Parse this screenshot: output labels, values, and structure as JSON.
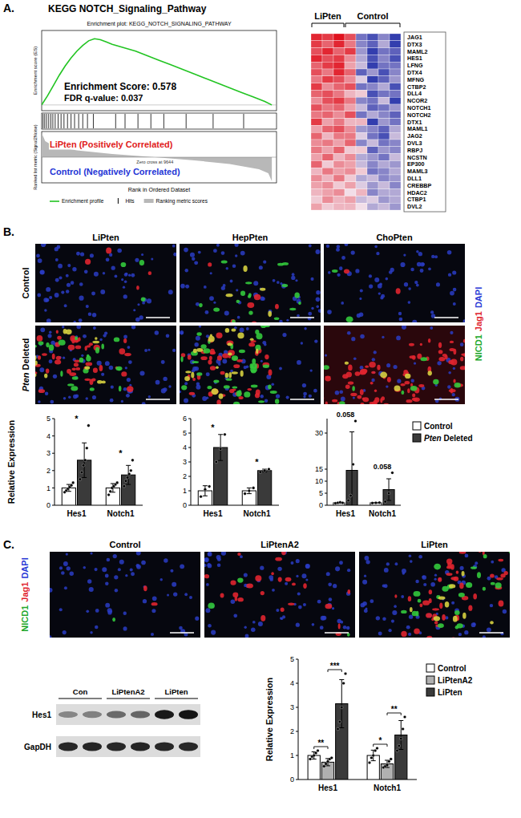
{
  "chart_data": [
    {
      "type": "line",
      "title": "Enrichment plot: KEGG_NOTCH_SIGNALING_PATHWAY",
      "x_label": "Rank in Ordered Dataset",
      "y_label": "Enrichment score (ES)",
      "x": [
        0,
        500,
        1000,
        1500,
        2000,
        2500,
        3000,
        3500,
        4000,
        4500,
        5000,
        5500,
        6000,
        7000,
        8000,
        9000,
        10000,
        11000,
        12000,
        13000,
        14000,
        15000,
        16000,
        17000,
        18000,
        19000,
        19600
      ],
      "series": [
        {
          "name": "Enrichment profile",
          "color": "#22c422",
          "values": [
            0,
            0.08,
            0.17,
            0.26,
            0.34,
            0.41,
            0.47,
            0.52,
            0.56,
            0.578,
            0.57,
            0.55,
            0.53,
            0.5,
            0.47,
            0.43,
            0.39,
            0.35,
            0.31,
            0.27,
            0.23,
            0.19,
            0.15,
            0.11,
            0.07,
            0.03,
            0
          ]
        }
      ],
      "xlim": [
        0,
        20000
      ],
      "ylim": [
        -0.05,
        0.65
      ],
      "tick_labels": false,
      "legend": "bottom",
      "hits": {
        "name": "Hits",
        "color": "#000000",
        "x": [
          120,
          260,
          420,
          600,
          780,
          950,
          1150,
          1400,
          1650,
          1900,
          2200,
          2500,
          2800,
          3150,
          3500,
          3900,
          4400,
          6300,
          7100,
          8200,
          9300,
          10400,
          12300,
          14600,
          17200
        ]
      },
      "ranking_metric": {
        "name": "Ranking metric scores",
        "y_label": "Ranked list metric (Signal2Noise)",
        "color": "#b8b8b8",
        "x": [
          0,
          300,
          1000,
          3000,
          6000,
          9644,
          13000,
          16000,
          18500,
          19300,
          19600
        ],
        "values": [
          1.5,
          1.0,
          0.7,
          0.42,
          0.2,
          0,
          -0.2,
          -0.42,
          -0.75,
          -1.0,
          -1.5
        ],
        "ylim": [
          -1.6,
          1.6
        ],
        "zero_cross_label": "Zero cross at 9644"
      },
      "annotations": [
        {
          "text": "Enrichment Score: 0.578"
        },
        {
          "text": "FDR q-value: 0.037"
        },
        {
          "text": "LiPten (Positively Correlated)",
          "color": "#e01b1b"
        },
        {
          "text": "Control (Negatively Correlated)",
          "color": "#2436d6"
        }
      ]
    },
    {
      "type": "heatmap",
      "column_groups": [
        "LiPten",
        "LiPten",
        "LiPten",
        "Control",
        "Control",
        "Control",
        "Control",
        "Control"
      ],
      "rows": [
        "JAG1",
        "DTX3",
        "MAML2",
        "HES1",
        "LFNG",
        "DTX4",
        "MFNG",
        "CTBP2",
        "DLL4",
        "NCOR2",
        "NOTCH1",
        "NOTCH2",
        "DTX1",
        "MAML1",
        "JAG2",
        "DVL3",
        "RBPJ",
        "NCSTN",
        "EP300",
        "MAML3",
        "DLL1",
        "CREBBP",
        "HDAC2",
        "CTBP1",
        "DVL2"
      ],
      "cells": [
        [
          0.9,
          0.8,
          1,
          0.7,
          -0.6,
          -0.8,
          -0.5,
          -0.9
        ],
        [
          0.8,
          0.6,
          0.9,
          0.5,
          -0.5,
          -0.7,
          -0.3,
          -0.9
        ],
        [
          0.7,
          0.9,
          0.6,
          0.8,
          -0.4,
          -0.9,
          -0.6,
          -0.7
        ],
        [
          0.9,
          0.7,
          0.8,
          0.4,
          -0.3,
          -0.8,
          -0.5,
          -0.8
        ],
        [
          0.6,
          0.8,
          0.9,
          0.3,
          -0.2,
          -0.9,
          -0.6,
          -0.6
        ],
        [
          0.7,
          0.5,
          0.9,
          0.6,
          -0.7,
          -0.4,
          -0.8,
          -0.5
        ],
        [
          0.5,
          0.8,
          0.7,
          0.4,
          -0.1,
          -0.9,
          -0.7,
          -0.4
        ],
        [
          0.8,
          0.4,
          0.6,
          0.7,
          -0.6,
          -0.5,
          -0.3,
          -0.8
        ],
        [
          0.6,
          0.7,
          0.5,
          0.2,
          0.1,
          -0.8,
          -0.6,
          -0.6
        ],
        [
          0.4,
          0.7,
          0.8,
          0.5,
          -0.5,
          -0.6,
          -0.2,
          -0.9
        ],
        [
          0.7,
          0.5,
          0.6,
          0.3,
          -0.2,
          -0.7,
          -0.6,
          -0.4
        ],
        [
          0.5,
          0.6,
          0.4,
          0.7,
          -0.6,
          -0.3,
          -0.5,
          -0.7
        ],
        [
          0.8,
          0.3,
          0.5,
          0.2,
          0.2,
          -0.9,
          -0.4,
          -0.6
        ],
        [
          0.3,
          0.6,
          0.7,
          0.4,
          -0.4,
          -0.5,
          -0.7,
          -0.3
        ],
        [
          0.6,
          0.2,
          0.5,
          0.5,
          -0.1,
          -0.6,
          -0.8,
          -0.2
        ],
        [
          0.4,
          0.5,
          0.3,
          0.6,
          -0.5,
          -0.2,
          -0.6,
          -0.5
        ],
        [
          0.5,
          0.3,
          0.6,
          0.1,
          0.1,
          -0.7,
          -0.4,
          -0.5
        ],
        [
          0.3,
          0.6,
          0.2,
          0.4,
          -0.3,
          -0.4,
          -0.6,
          -0.2
        ],
        [
          0.6,
          0.1,
          0.4,
          0.3,
          -0.2,
          -0.5,
          -0.3,
          -0.4
        ],
        [
          0.2,
          0.5,
          0.3,
          0.4,
          0.1,
          -0.6,
          -0.5,
          -0.3
        ],
        [
          0.4,
          0.2,
          0.5,
          0.1,
          -0.3,
          -0.2,
          -0.5,
          -0.4
        ],
        [
          0.3,
          0.4,
          0.1,
          0.3,
          -0.1,
          -0.4,
          -0.2,
          -0.5
        ],
        [
          0.2,
          0.3,
          0.4,
          0.0,
          0.2,
          -0.5,
          -0.3,
          -0.3
        ],
        [
          0.1,
          0.4,
          0.2,
          0.3,
          -0.2,
          -0.1,
          -0.4,
          -0.3
        ],
        [
          0.3,
          0.1,
          0.2,
          0.2,
          0.0,
          -0.3,
          -0.2,
          -0.4
        ]
      ],
      "zlim": [
        -1,
        1
      ]
    },
    {
      "type": "bar",
      "y_label": "Relative Expression",
      "categories": [
        "Hes1",
        "Notch1"
      ],
      "legend": "right",
      "series": [
        {
          "name": "Control",
          "color": "#ffffff"
        },
        {
          "name": "Pten Deleted",
          "color": "#3a3a3a"
        }
      ],
      "facets": [
        {
          "ylim": [
            0,
            5
          ],
          "yticks": [
            0,
            1,
            2,
            3,
            4,
            5
          ],
          "series": [
            {
              "values": [
                1.0,
                1.0
              ],
              "errors": [
                0.2,
                0.25
              ],
              "points": [
                [
                  0.75,
                  0.85,
                  0.95,
                  1.05,
                  1.15,
                  1.3
                ],
                [
                  0.6,
                  0.8,
                  1.0,
                  1.1,
                  1.2,
                  1.3
                ]
              ]
            },
            {
              "values": [
                2.6,
                1.75
              ],
              "errors": [
                1.0,
                0.55
              ],
              "points": [
                [
                  1.5,
                  1.9,
                  2.3,
                  2.6,
                  3.3,
                  4.6
                ],
                [
                  1.1,
                  1.4,
                  1.6,
                  1.8,
                  2.0,
                  2.6
                ]
              ],
              "significance": [
                "*",
                "*"
              ]
            }
          ]
        },
        {
          "ylim": [
            0,
            6
          ],
          "yticks": [
            0,
            1,
            2,
            3,
            4,
            5,
            6
          ],
          "series": [
            {
              "values": [
                1.0,
                1.0
              ],
              "errors": [
                0.35,
                0.2
              ],
              "points": [
                [
                  0.6,
                  1.1,
                  1.3
                ],
                [
                  0.8,
                  1.0,
                  1.2
                ]
              ]
            },
            {
              "values": [
                4.0,
                2.4
              ],
              "errors": [
                0.9,
                0.1
              ],
              "points": [
                [
                  3.0,
                  3.9,
                  4.9
                ],
                [
                  2.3,
                  2.4,
                  2.5
                ]
              ],
              "significance": [
                "*",
                "*"
              ]
            }
          ]
        },
        {
          "ylim": [
            0,
            36
          ],
          "yticks": [
            0,
            5,
            10,
            15,
            30
          ],
          "series": [
            {
              "values": [
                1.0,
                1.0
              ],
              "errors": [
                0.2,
                0.1
              ],
              "points": [
                [
                  0.8,
                  1.0,
                  1.2,
                  1.0
                ],
                [
                  0.9,
                  1.0,
                  1.1
                ]
              ]
            },
            {
              "values": [
                14.5,
                6.5
              ],
              "errors": [
                16.0,
                4.5
              ],
              "points": [
                [
                  2.0,
                  4.0,
                  17.0,
                  35.0
                ],
                [
                  1.5,
                  5.0,
                  13.5
                ]
              ],
              "significance": [
                "0.058",
                "0.058"
              ]
            }
          ]
        }
      ]
    },
    {
      "type": "bar",
      "y_label": "Relative Expression",
      "categories": [
        "Hes1",
        "Notch1"
      ],
      "legend": "right",
      "ylim": [
        0,
        5
      ],
      "yticks": [
        0,
        1,
        2,
        3,
        4,
        5
      ],
      "series": [
        {
          "name": "Control",
          "color": "#ffffff",
          "values": [
            1.0,
            1.0
          ],
          "errors": [
            0.15,
            0.22
          ],
          "points": [
            [
              0.85,
              0.95,
              1.0,
              1.1,
              1.2
            ],
            [
              0.7,
              0.9,
              1.0,
              1.2,
              1.3
            ]
          ]
        },
        {
          "name": "LiPtenA2",
          "color": "#b0b0b0",
          "values": [
            0.72,
            0.65
          ],
          "errors": [
            0.15,
            0.15
          ],
          "points": [
            [
              0.55,
              0.65,
              0.75,
              0.85,
              0.9
            ],
            [
              0.5,
              0.55,
              0.6,
              0.75,
              0.85
            ]
          ],
          "significance": [
            "**",
            "*"
          ]
        },
        {
          "name": "LiPten",
          "color": "#3a3a3a",
          "values": [
            3.15,
            1.85
          ],
          "errors": [
            1.0,
            0.6
          ],
          "points": [
            [
              2.1,
              2.4,
              3.0,
              4.0,
              4.4
            ],
            [
              1.2,
              1.4,
              1.7,
              2.1,
              2.6
            ]
          ],
          "significance": [
            "***",
            "**"
          ]
        }
      ]
    }
  ],
  "figure": {
    "panel_labels": [
      "A.",
      "B.",
      "C."
    ],
    "panel_a": {
      "title": "KEGG NOTCH_Signaling_Pathway"
    },
    "panel_b": {
      "columns": [
        "LiPten",
        "HepPten",
        "ChoPten"
      ],
      "rows": [
        "Control",
        "Pten Deleted"
      ],
      "stain": [
        {
          "label": "NICD1",
          "color": "#22a82c"
        },
        {
          "label": "Jag1",
          "color": "#e0252f"
        },
        {
          "label": "DAPI",
          "color": "#2b3bd6"
        }
      ]
    },
    "panel_c": {
      "columns": [
        "Control",
        "LiPtenA2",
        "LiPten"
      ],
      "stain": [
        {
          "label": "NICD1",
          "color": "#22a82c"
        },
        {
          "label": "Jag1",
          "color": "#e0252f"
        },
        {
          "label": "DAPI",
          "color": "#2b3bd6"
        }
      ],
      "blot": {
        "lanes": [
          "Con",
          "LiPtenA2",
          "LiPten"
        ],
        "rows": [
          "Hes1",
          "GapDH"
        ]
      }
    }
  }
}
